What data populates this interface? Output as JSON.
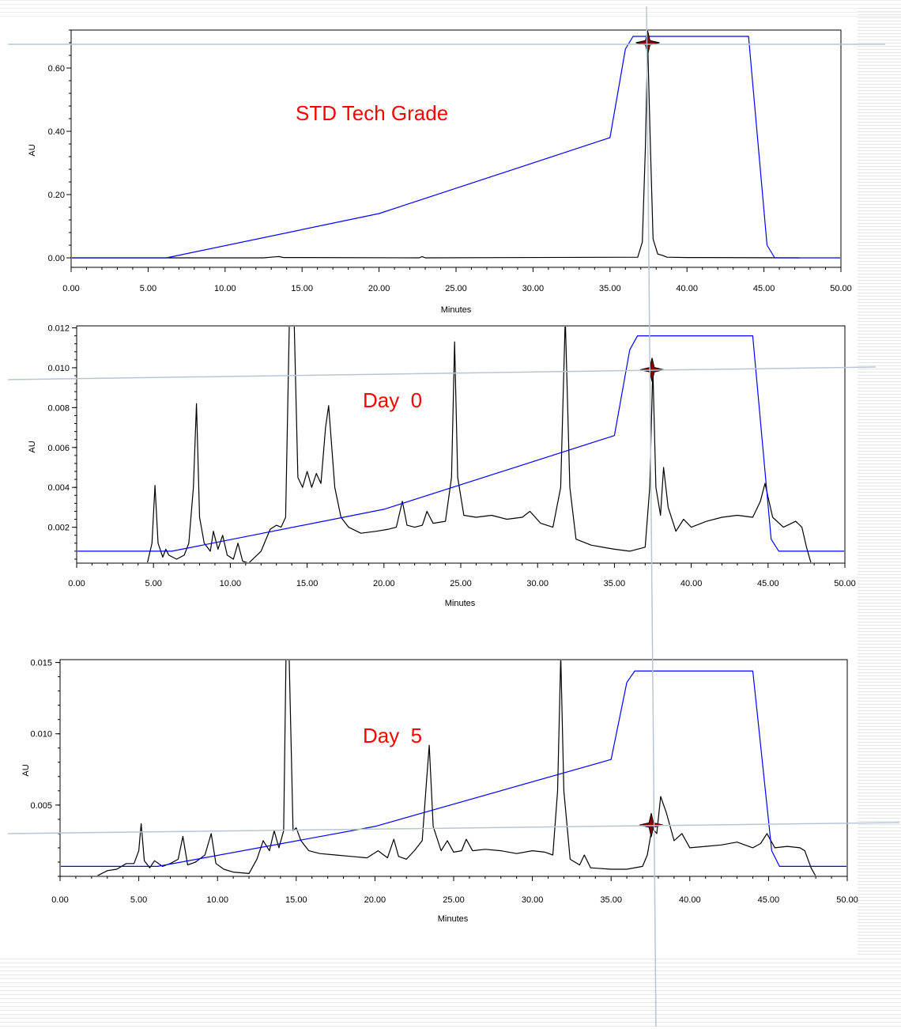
{
  "colors": {
    "trace": "#000000",
    "gradient": "#0000ff",
    "label": "#ff0000",
    "marker": "#8b0000",
    "guide": "#b9c6d2"
  },
  "chart_data": [
    {
      "type": "line",
      "title": "STD Tech Grade",
      "xlabel": "Minutes",
      "ylabel": "AU",
      "xlim": [
        0,
        50
      ],
      "ylim": [
        -0.03,
        0.72
      ],
      "x_ticks": [
        "0.00",
        "5.00",
        "10.00",
        "15.00",
        "20.00",
        "25.00",
        "30.00",
        "35.00",
        "40.00",
        "45.00",
        "50.00"
      ],
      "y_ticks": [
        {
          "value": 0.0,
          "label": "0.00"
        },
        {
          "value": 0.2,
          "label": "0.20"
        },
        {
          "value": 0.4,
          "label": "0.40"
        },
        {
          "value": 0.6,
          "label": "0.60"
        }
      ],
      "series": [
        {
          "kind": "chromatogram",
          "x": [
            0,
            12.5,
            13.2,
            13.5,
            13.8,
            22.6,
            22.8,
            23.0,
            36.8,
            37.1,
            37.3,
            37.45,
            37.6,
            37.8,
            38.1,
            38.4,
            38.7,
            40,
            47.3
          ],
          "y": [
            0,
            0,
            0.003,
            0.004,
            0.001,
            0.0,
            0.004,
            0.0,
            0.002,
            0.05,
            0.35,
            0.68,
            0.4,
            0.06,
            0.012,
            0.008,
            0.002,
            0.001,
            0.0
          ]
        },
        {
          "kind": "gradient",
          "x": [
            0,
            6.2,
            20.0,
            35.0,
            36.0,
            36.5,
            44.0,
            45.2,
            45.7,
            50
          ],
          "y": [
            0,
            0,
            0.14,
            0.38,
            0.66,
            0.7,
            0.7,
            0.04,
            0.0,
            0.0
          ]
        }
      ],
      "marker": {
        "x": 37.45,
        "y": 0.68
      }
    },
    {
      "type": "line",
      "title": "Day  0",
      "xlabel": "Minutes",
      "ylabel": "AU",
      "xlim": [
        0,
        50
      ],
      "ylim": [
        0.0002,
        0.0121
      ],
      "x_ticks": [
        "0.00",
        "5.00",
        "10.00",
        "15.00",
        "20.00",
        "25.00",
        "30.00",
        "35.00",
        "40.00",
        "45.00",
        "50.00"
      ],
      "y_ticks": [
        {
          "value": 0.002,
          "label": "0.002"
        },
        {
          "value": 0.004,
          "label": "0.004"
        },
        {
          "value": 0.006,
          "label": "0.006"
        },
        {
          "value": 0.008,
          "label": "0.008"
        },
        {
          "value": 0.01,
          "label": "0.010"
        },
        {
          "value": 0.012,
          "label": "0.012"
        }
      ],
      "series": [
        {
          "kind": "chromatogram",
          "x": [
            4.6,
            4.9,
            5.1,
            5.3,
            5.6,
            5.8,
            6.0,
            6.5,
            7.0,
            7.3,
            7.6,
            7.8,
            8.0,
            8.3,
            8.7,
            8.9,
            9.2,
            9.5,
            9.8,
            10.2,
            10.5,
            10.8,
            11.2,
            12.0,
            12.6,
            13.0,
            13.3,
            13.6,
            13.85,
            14.0,
            14.15,
            14.4,
            14.7,
            15.0,
            15.3,
            15.6,
            15.9,
            16.2,
            16.4,
            16.8,
            17.2,
            17.7,
            18.5,
            19.5,
            20.3,
            20.8,
            21.2,
            21.5,
            22.0,
            22.5,
            22.8,
            23.2,
            24.0,
            24.4,
            24.6,
            24.8,
            25.2,
            26.0,
            27.0,
            28.0,
            29.0,
            29.5,
            30.2,
            31.0,
            31.5,
            31.8,
            32.1,
            32.5,
            33.5,
            35.0,
            36.0,
            37.0,
            37.3,
            37.5,
            37.7,
            38.0,
            38.2,
            38.5,
            39.0,
            39.5,
            40.0,
            41.0,
            42.0,
            43.0,
            44.0,
            44.5,
            44.8,
            45.3,
            46.0,
            46.8,
            47.2,
            47.5,
            47.8
          ],
          "y": [
            0.0002,
            0.0012,
            0.0041,
            0.0012,
            0.0005,
            0.0009,
            0.0006,
            0.0004,
            0.0006,
            0.0012,
            0.004,
            0.0082,
            0.0025,
            0.0012,
            0.0008,
            0.0018,
            0.0009,
            0.0016,
            0.0006,
            0.0004,
            0.0012,
            0.0003,
            0.0002,
            0.0008,
            0.0019,
            0.0021,
            0.002,
            0.0025,
            0.0125,
            0.0125,
            0.0125,
            0.0045,
            0.004,
            0.0048,
            0.004,
            0.0047,
            0.0042,
            0.007,
            0.0081,
            0.004,
            0.0025,
            0.002,
            0.0017,
            0.0018,
            0.0019,
            0.002,
            0.0033,
            0.0021,
            0.002,
            0.0021,
            0.0028,
            0.0022,
            0.0023,
            0.0045,
            0.0113,
            0.0045,
            0.0026,
            0.0025,
            0.0026,
            0.0024,
            0.0025,
            0.0028,
            0.0022,
            0.002,
            0.004,
            0.0125,
            0.004,
            0.0014,
            0.0011,
            0.0009,
            0.0008,
            0.001,
            0.004,
            0.01,
            0.004,
            0.0026,
            0.005,
            0.003,
            0.0018,
            0.0024,
            0.002,
            0.0023,
            0.0025,
            0.0026,
            0.0025,
            0.0033,
            0.0042,
            0.0025,
            0.002,
            0.0023,
            0.002,
            0.001,
            0.0002
          ]
        },
        {
          "kind": "gradient",
          "x": [
            0,
            6.2,
            20.0,
            35.0,
            36.0,
            36.5,
            44.0,
            45.2,
            45.7,
            50
          ],
          "y": [
            0.0008,
            0.0008,
            0.0029,
            0.0066,
            0.0109,
            0.0116,
            0.0116,
            0.0014,
            0.0008,
            0.0008
          ]
        }
      ],
      "marker": {
        "x": 37.45,
        "y": 0.0099
      }
    },
    {
      "type": "line",
      "title": "Day  5",
      "xlabel": "Minutes",
      "ylabel": "AU",
      "xlim": [
        0,
        50
      ],
      "ylim": [
        0.0,
        0.0152
      ],
      "x_ticks": [
        "0.00",
        "5.00",
        "10.00",
        "15.00",
        "20.00",
        "25.00",
        "30.00",
        "35.00",
        "40.00",
        "45.00",
        "50.00"
      ],
      "y_ticks": [
        {
          "value": 0.005,
          "label": "0.005"
        },
        {
          "value": 0.01,
          "label": "0.010"
        },
        {
          "value": 0.015,
          "label": "0.015"
        }
      ],
      "series": [
        {
          "kind": "chromatogram",
          "x": [
            2.3,
            3.0,
            3.6,
            4.2,
            4.7,
            5.0,
            5.15,
            5.35,
            5.7,
            6.0,
            6.5,
            7.0,
            7.5,
            7.8,
            8.1,
            8.6,
            9.2,
            9.6,
            9.9,
            10.4,
            11.0,
            12.0,
            12.5,
            12.9,
            13.3,
            13.6,
            13.9,
            14.2,
            14.35,
            14.55,
            14.8,
            15.0,
            15.3,
            15.8,
            16.5,
            17.5,
            18.5,
            19.5,
            20.2,
            20.8,
            21.2,
            21.5,
            22.0,
            22.5,
            23.0,
            23.3,
            23.45,
            23.7,
            24.2,
            24.6,
            25.0,
            25.5,
            25.8,
            26.2,
            27.0,
            28.0,
            29.0,
            30.0,
            30.8,
            31.3,
            31.6,
            31.8,
            32.0,
            32.4,
            33.0,
            33.3,
            33.7,
            35.0,
            36.0,
            37.0,
            37.3,
            37.6,
            37.9,
            38.15,
            38.5,
            39.0,
            39.5,
            40.0,
            41.0,
            42.0,
            43.0,
            44.0,
            44.5,
            44.9,
            45.4,
            46.2,
            47.0,
            47.3,
            47.7,
            48.0
          ],
          "y": [
            0.0,
            0.0004,
            0.0005,
            0.0009,
            0.0009,
            0.0018,
            0.0037,
            0.0011,
            0.0006,
            0.0011,
            0.0007,
            0.0009,
            0.0012,
            0.0028,
            0.0008,
            0.001,
            0.0015,
            0.003,
            0.0009,
            0.0005,
            0.0003,
            0.0002,
            0.0012,
            0.0025,
            0.0018,
            0.0032,
            0.002,
            0.0032,
            0.0155,
            0.0155,
            0.0032,
            0.0034,
            0.0025,
            0.0018,
            0.0016,
            0.0015,
            0.0014,
            0.0013,
            0.0018,
            0.0013,
            0.0026,
            0.0014,
            0.0012,
            0.0018,
            0.0025,
            0.007,
            0.0092,
            0.0035,
            0.0018,
            0.0025,
            0.0017,
            0.0018,
            0.0026,
            0.0018,
            0.0019,
            0.0018,
            0.0016,
            0.0018,
            0.0017,
            0.0015,
            0.006,
            0.0155,
            0.006,
            0.0012,
            0.0008,
            0.0015,
            0.0006,
            0.0005,
            0.0005,
            0.0007,
            0.0015,
            0.0034,
            0.003,
            0.0056,
            0.0045,
            0.0025,
            0.003,
            0.002,
            0.0021,
            0.0022,
            0.0024,
            0.002,
            0.0023,
            0.003,
            0.002,
            0.0021,
            0.002,
            0.0018,
            0.0006,
            0.0
          ]
        },
        {
          "kind": "gradient",
          "x": [
            0,
            6.2,
            20.0,
            35.0,
            36.0,
            36.5,
            44.0,
            45.2,
            45.7,
            50
          ],
          "y": [
            0.0007,
            0.0007,
            0.0035,
            0.0082,
            0.0136,
            0.0144,
            0.0144,
            0.0018,
            0.0007,
            0.0007
          ]
        }
      ],
      "marker": {
        "x": 37.55,
        "y": 0.0036
      }
    }
  ]
}
